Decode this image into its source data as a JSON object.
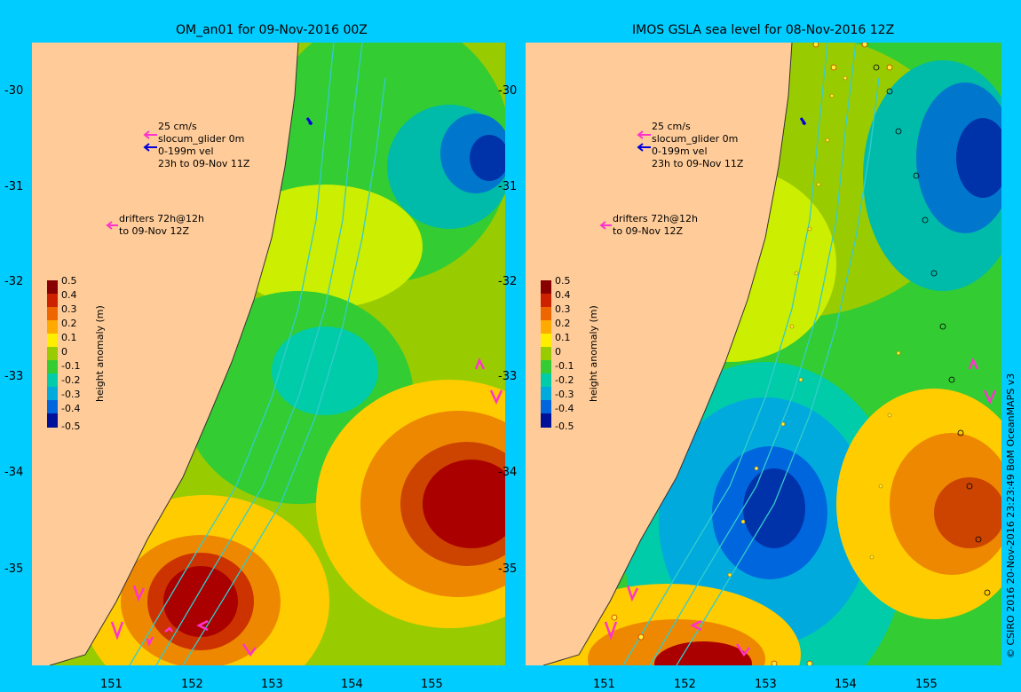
{
  "panels": [
    {
      "title": "OM_an01 for 09-Nov-2016 00Z",
      "key_text": [
        "25 cm/s",
        "slocum_glider 0m",
        "0-199m vel",
        "23h to 09-Nov 11Z"
      ],
      "drifter_text": [
        "drifters 72h@12h",
        "to 09-Nov 12Z"
      ]
    },
    {
      "title": "IMOS GSLA sea level  for 08-Nov-2016 12Z",
      "key_text": [
        "25 cm/s",
        "slocum_glider 0m",
        "0-199m vel",
        "23h to 09-Nov 11Z"
      ],
      "drifter_text": [
        "drifters 72h@12h",
        "to 09-Nov 12Z"
      ]
    }
  ],
  "y_ticks": [
    "-30",
    "-31",
    "-32",
    "-33",
    "-34",
    "-35"
  ],
  "x_ticks": [
    "151",
    "152",
    "153",
    "154",
    "155"
  ],
  "colorbar": {
    "label": "height anomaly (m)",
    "ticks": [
      "0.5",
      "0.4",
      "0.3",
      "0.2",
      "0.1",
      "0",
      "-0.1",
      "-0.2",
      "-0.3",
      "-0.4",
      "-0.5"
    ]
  },
  "credit": "© CSIRO 2016  20-Nov-2016 23:23:49 BoM OceanMAPS v3",
  "colors": {
    "background": "#00ccff",
    "land": "#ffcc99",
    "glider_arrow": "#ff33cc",
    "velocity_arrow": "#0000dd",
    "isobath": "#33cccc"
  }
}
